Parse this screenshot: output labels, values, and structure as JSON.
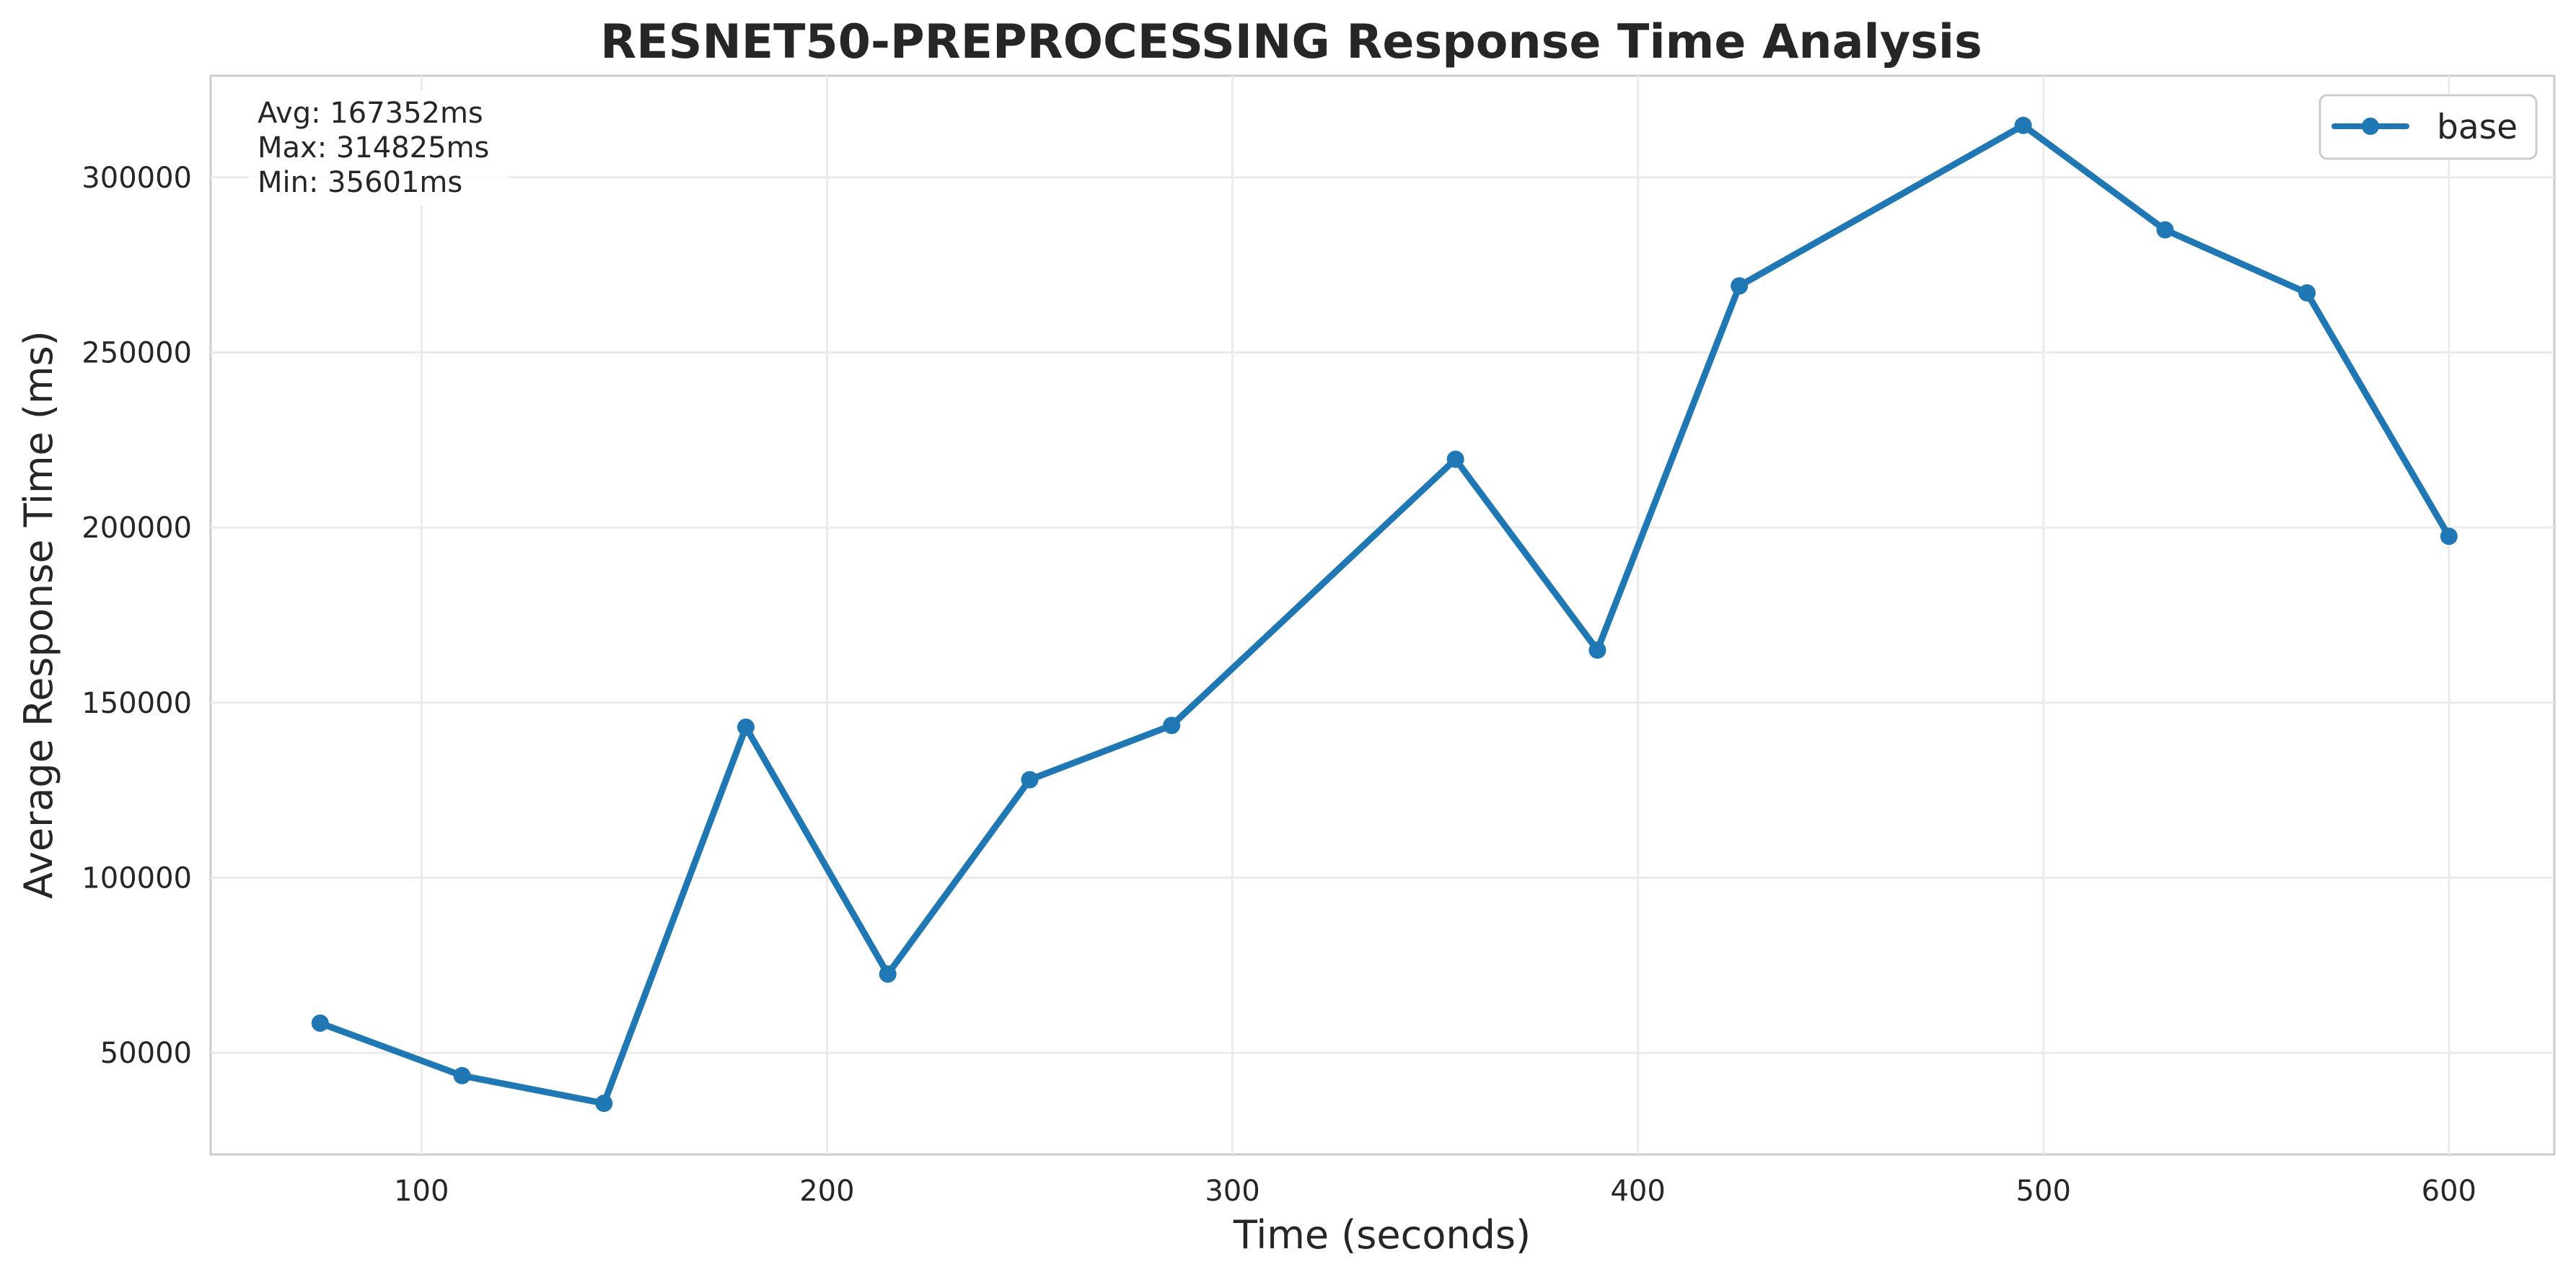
{
  "chart_data": {
    "type": "line",
    "title": "RESNET50-PREPROCESSING Response Time Analysis",
    "xlabel": "Time (seconds)",
    "ylabel": "Average Response Time (ms)",
    "xlim": [
      48,
      626
    ],
    "ylim": [
      21000,
      329000
    ],
    "x_ticks": [
      100,
      200,
      300,
      400,
      500,
      600
    ],
    "y_ticks": [
      50000,
      100000,
      150000,
      200000,
      250000,
      300000
    ],
    "grid": true,
    "legend_position": "top-right",
    "colors": {
      "base": "#1f77b4"
    },
    "series": [
      {
        "name": "base",
        "x": [
          75,
          110,
          145,
          180,
          215,
          250,
          285,
          355,
          390,
          425,
          495,
          530,
          565,
          600
        ],
        "values": [
          58500,
          43500,
          35601,
          143000,
          72500,
          128000,
          143500,
          219500,
          165000,
          269000,
          314825,
          285000,
          267000,
          197500
        ]
      }
    ],
    "stats": {
      "avg": "Avg: 167352ms",
      "max": "Max: 314825ms",
      "min": "Min: 35601ms"
    }
  }
}
